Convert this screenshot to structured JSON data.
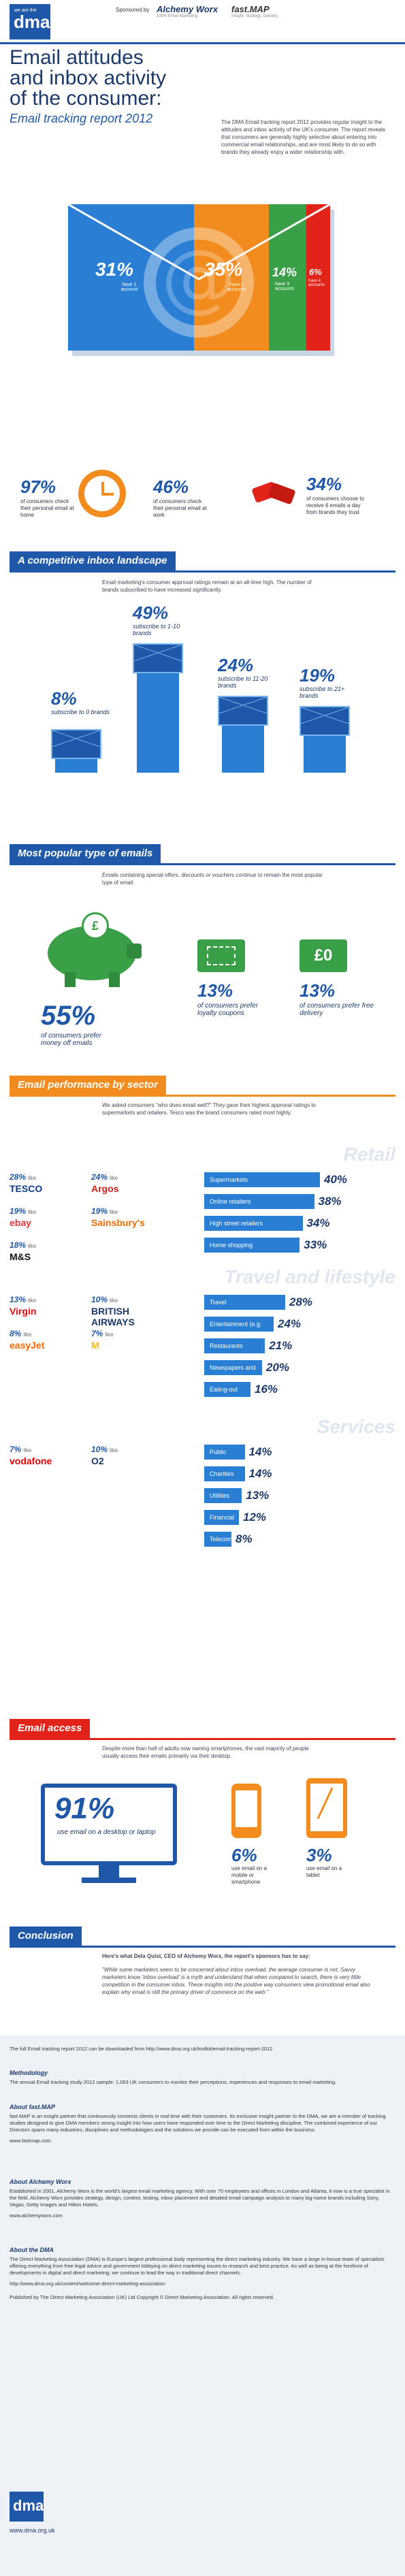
{
  "header": {
    "logo_top": "we are the",
    "logo": "dma",
    "sponsored_by": "Sponsored by",
    "sponsor1": "Alchemy Worx",
    "sponsor1_tag": "100% Email Marketing",
    "sponsor2": "fast.MAP",
    "sponsor2_tag": "Insight. Strategy. Delivery.",
    "title_l1": "Email attitudes",
    "title_l2": "and inbox activity",
    "title_l3": "of the consumer:",
    "subtitle": "Email tracking report 2012",
    "intro": "The DMA Email tracking report 2012 provides regular insight to the attitudes and inbox activity of the UK's consumer. The report reveals that consumers are generally highly selective about entering into commercial email relationships, and are most likely to do so with brands they already enjoy a wider relationship with."
  },
  "hero_accounts": [
    {
      "value": "31%",
      "label": "have 1 account",
      "color": "#2a7fd4"
    },
    {
      "value": "35%",
      "label": "have 2 accounts",
      "color": "#f28c1e"
    },
    {
      "value": "14%",
      "label": "have 3 accounts",
      "color": "#3aa048"
    },
    {
      "value": "6%",
      "label": "have 4 accounts",
      "color": "#e2231a"
    }
  ],
  "checks": [
    {
      "value": "97%",
      "text": "of consumers check their personal email at home"
    },
    {
      "value": "46%",
      "text": "of consumers check their personal email at work"
    },
    {
      "value": "34%",
      "text": "of consumers choose to receive 6 emails a day from brands they trust"
    }
  ],
  "sections": {
    "s1": "A competitive inbox landscape",
    "s2": "Most popular type of emails",
    "s3": "Email performance by sector",
    "s4": "Email access",
    "s5": "Conclusion"
  },
  "landscape": {
    "intro": "Email marketing's consumer approval ratings remain at an all-time high. The number of brands subscribed to have increased significantly.",
    "bars": [
      {
        "value": "8%",
        "label": "subscribe to 0 brands",
        "level": 8
      },
      {
        "value": "49%",
        "label": "subscribe to 1-10 brands",
        "level": 49
      },
      {
        "value": "24%",
        "label": "subscribe to 11-20 brands",
        "level": 24
      },
      {
        "value": "19%",
        "label": "subscribe to 21+ brands",
        "level": 19
      }
    ]
  },
  "popular": {
    "intro": "Emails containing special offers, discounts or vouchers continue to remain the most popular type of email.",
    "money_off_value": "55%",
    "money_off_text": "of consumers prefer money off emails",
    "loyalty_value": "13%",
    "loyalty_text": "of consumers prefer loyalty coupons",
    "delivery_value": "13%",
    "delivery_text": "of consumers prefer free delivery",
    "free_icon": "£0"
  },
  "sector": {
    "intro": "We asked consumers \"who does email well?\" They gave their highest approval ratings to supermarkets and retailers. Tesco was the brand consumers rated most highly.",
    "like_word": "like",
    "retail": {
      "heading": "Retail",
      "bars": [
        {
          "label": "Supermarkets",
          "value": "40%",
          "level": 40
        },
        {
          "label": "Online retailers",
          "value": "38%",
          "level": 38
        },
        {
          "label": "High street retailers",
          "value": "34%",
          "level": 34
        },
        {
          "label": "Home shopping",
          "value": "33%",
          "level": 33
        }
      ],
      "brands": [
        {
          "pct": "28%",
          "name": "TESCO",
          "color": "#0b3c8c"
        },
        {
          "pct": "24%",
          "name": "Argos",
          "color": "#d4201b"
        },
        {
          "pct": "19%",
          "name": "ebay",
          "color": "#e53238"
        },
        {
          "pct": "19%",
          "name": "Sainsbury's",
          "color": "#f06c00"
        },
        {
          "pct": "18%",
          "name": "M&S",
          "color": "#111111"
        }
      ]
    },
    "travel": {
      "heading": "Travel and lifestyle",
      "bars": [
        {
          "label": "Travel",
          "value": "28%",
          "level": 28
        },
        {
          "label": "Entertainment (e.g. ticketmaster)",
          "value": "24%",
          "level": 24
        },
        {
          "label": "Restaurants",
          "value": "21%",
          "level": 21
        },
        {
          "label": "Newspapers and Television",
          "value": "20%",
          "level": 20
        },
        {
          "label": "Eating-out deals (e.g. Taste Card)",
          "value": "16%",
          "level": 16
        }
      ],
      "brands": [
        {
          "pct": "13%",
          "name": "Virgin",
          "color": "#e10a0a"
        },
        {
          "pct": "10%",
          "name": "BRITISH AIRWAYS",
          "color": "#1b3a6b"
        },
        {
          "pct": "8%",
          "name": "easyJet",
          "color": "#ff6600"
        },
        {
          "pct": "7%",
          "name": "M",
          "color": "#ffbc0d"
        }
      ]
    },
    "services": {
      "heading": "Services",
      "bars": [
        {
          "label": "Public services/ government",
          "value": "14%",
          "level": 14
        },
        {
          "label": "Charities",
          "value": "14%",
          "level": 14
        },
        {
          "label": "Utilities",
          "value": "13%",
          "level": 13
        },
        {
          "label": "Financial",
          "value": "12%",
          "level": 12
        },
        {
          "label": "Telecoms",
          "value": "8%",
          "level": 8
        }
      ],
      "brands": [
        {
          "pct": "7%",
          "name": "vodafone",
          "color": "#e60000"
        },
        {
          "pct": "10%",
          "name": "O2",
          "color": "#1b3a6b"
        }
      ]
    }
  },
  "access": {
    "intro": "Despite more than half of adults now owning smartphones, the vast majority of people usually access their emails primarily via their desktop.",
    "desktop_value": "91%",
    "desktop_text": "use email on a desktop or laptop",
    "mobile_value": "6%",
    "mobile_text": "use email on a mobile or smartphone",
    "tablet_value": "3%",
    "tablet_text": "use email on a tablet"
  },
  "conclusion": {
    "lead": "Here's what Dela Quist, CEO of Alchemy Worx, the report's sponsors has to say:",
    "quote": "\"While some marketers seem to be concerned about inbox overload, the average consumer is not. Savvy marketers know 'inbox overload' is a myth and understand that when compared to search, there is very little competition in the consumer inbox. These insights into the positive way consumers view promotional email also explain why email is still the primary driver of commerce on the web.\""
  },
  "footer": {
    "download": "The full Email tracking report 2012 can be downloaded from http://www.dma.org.uk/toolkit/email-tracking-report-2012",
    "methodology_h": "Methodology",
    "methodology": "The annual Email tracking study 2012 sample: 1,063 UK consumers to monitor their perceptions, experiences and responses to email marketing.",
    "fastmap_h": "About fast.MAP",
    "fastmap": "fast.MAP is an insight partner that continuously connects clients in real time with their customers. Its exclusive insight partner to the DMA, we are a member of tracking studies designed to give DMA members strong insight into how users have responded over time to the Direct Marketing discipline. The combined experience of our Directors spans many industries, disciplines and methodologies and the solutions we provide can be executed from within the business.",
    "fastmap_url": "www.fastmap.com",
    "alchemy_h": "About Alchemy Worx",
    "alchemy": "Established in 2001, Alchemy Worx is the world's largest email marketing agency. With over 70 employees and offices in London and Atlanta, it now is a true specialist in the field. Alchemy Worx provides strategy, design, content, testing, inbox placement and detailed email campaign analysis to many big-name brands including Sony, Vegas, Getty Images and Hilton Hotels.",
    "alchemy_url": "www.alchemyworx.com",
    "dma_h": "About the DMA",
    "dma": "The Direct Marketing Association (DMA) is Europe's largest professional body representing the direct marketing industry. We have a large in-house team of specialists offering everything from free legal advice and government lobbying on direct marketing issues to research and best practice. As well as being at the forefront of developments in digital and direct marketing, we continue to lead the way in traditional direct channels.",
    "dma_url": "http://www.dma.org.uk/content/welcome-direct-marketing-association",
    "published": "Published by The Direct Marketing Association (UK) Ltd Copyright © Direct Marketing Association. All rights reserved.",
    "site": "www.dma.org.uk"
  }
}
